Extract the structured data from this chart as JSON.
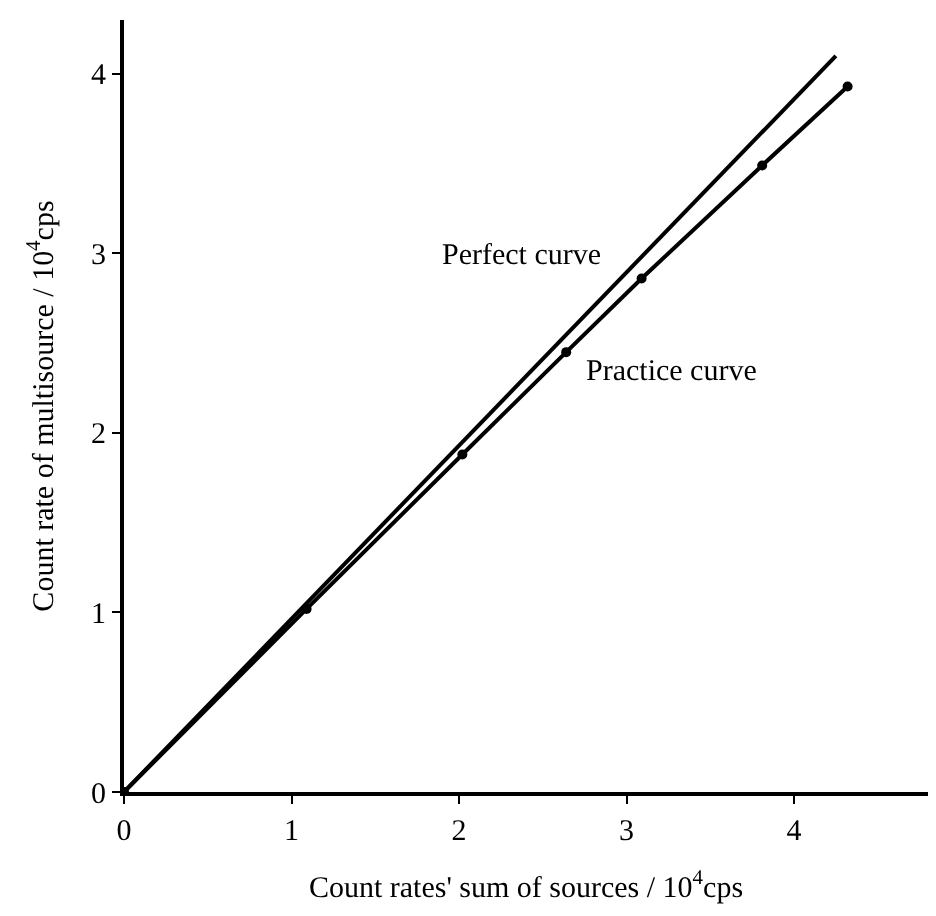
{
  "chart_data": {
    "type": "line",
    "xlabel": "Count rates' sum of sources / 10$^{4}$cps",
    "ylabel": "Count rate of multisource / 10$^{4}$cps",
    "series": [
      {
        "name": "Perfect curve",
        "color": "#000000",
        "x": [
          0,
          4.25
        ],
        "values": [
          0,
          4.1
        ]
      },
      {
        "name": "Practice curve",
        "color": "#000000",
        "x": [
          0,
          1.09,
          2.02,
          2.64,
          3.09,
          3.81,
          4.32
        ],
        "values": [
          0,
          1.02,
          1.88,
          2.45,
          2.86,
          3.49,
          3.93
        ],
        "marker": "circle"
      }
    ],
    "xlim": [
      0,
      4.8
    ],
    "ylim": [
      0,
      4.3
    ],
    "xticks": [
      0,
      1,
      2,
      3,
      4
    ],
    "yticks": [
      0,
      1,
      2,
      3,
      4
    ],
    "legend": false
  }
}
